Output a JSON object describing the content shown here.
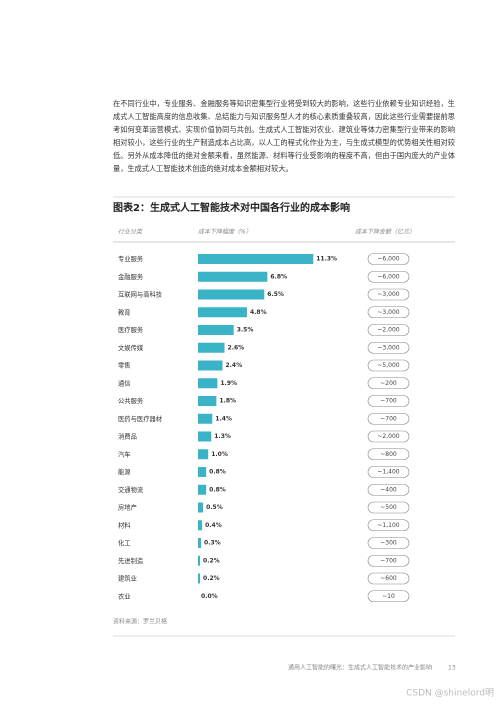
{
  "paragraph": "在不同行业中，专业服务、金融服务等知识密集型行业将受到较大的影响，这些行业依赖专业知识经验，生成式人工智能高度的信息收集、总结能力与知识服务型人才的核心素质重叠较高，因此这些行业需要提前思考如何变革运营模式、实现价值协同与共创。生成式人工智能对农业、建筑业等体力密集型行业带来的影响相对较小，这些行业的生产制造成本占比高，以人工的程式化作业为主，与生成式模型的优势相关性相对较低。另外从成本降低的绝对金额来看，虽然能源、材料等行业受影响的程度不高，但由于国内庞大的产业体量，生成式人工智能技术创造的绝对成本金额相对较大。",
  "chart_data": {
    "type": "bar",
    "orientation": "horizontal",
    "title": "图表2：生成式人工智能技术对中国各行业的成本影响",
    "column_headers": [
      "行业分类",
      "成本下降幅度（%）",
      "成本下降金额（亿元）"
    ],
    "categories": [
      "专业服务",
      "金融服务",
      "互联网与高科技",
      "教育",
      "医疗服务",
      "文娱传媒",
      "零售",
      "通信",
      "公共服务",
      "医药与医疗器材",
      "消费品",
      "汽车",
      "能源",
      "交通物流",
      "房地产",
      "材料",
      "化工",
      "先进制造",
      "建筑业",
      "农业"
    ],
    "values": [
      11.3,
      6.8,
      6.5,
      4.8,
      3.5,
      2.6,
      2.4,
      1.9,
      1.8,
      1.4,
      1.3,
      1.0,
      0.8,
      0.8,
      0.5,
      0.4,
      0.3,
      0.2,
      0.2,
      0.0
    ],
    "value_labels": [
      "11.3%",
      "6.8%",
      "6.5%",
      "4.8%",
      "3.5%",
      "2.6%",
      "2.4%",
      "1.9%",
      "1.8%",
      "1.4%",
      "1.3%",
      "1.0%",
      "0.8%",
      "0.8%",
      "0.5%",
      "0.4%",
      "0.3%",
      "0.2%",
      "0.2%",
      "0.0%"
    ],
    "amount_labels": [
      "~6,000",
      "~6,000",
      "~3,000",
      "~3,000",
      "~2,000",
      "~3,000",
      "~5,000",
      "~200",
      "~700",
      "~700",
      "~2,000",
      "~800",
      "~1,400",
      "~400",
      "~500",
      "~1,100",
      "~300",
      "~700",
      "~600",
      "~10"
    ],
    "color": "#3bb3c6",
    "source": "资料来源：罗兰贝格"
  },
  "footer": {
    "text": "通用人工智能的曙光：生成式人工智能技术的产业影响",
    "page": 13
  },
  "watermark": "CSDN @shinelord明"
}
